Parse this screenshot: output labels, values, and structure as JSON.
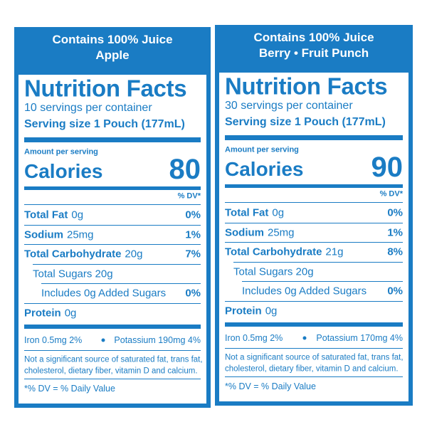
{
  "panels": [
    {
      "header": [
        "Contains 100% Juice",
        "Apple"
      ],
      "title": "Nutrition Facts",
      "servings": "10 servings per container",
      "serving_size": "Serving size 1 Pouch (177mL)",
      "amount_label": "Amount per serving",
      "calories_label": "Calories",
      "calories": 80,
      "dv_header": "% DV*",
      "rows": [
        {
          "name": "Total Fat",
          "amount": "0g",
          "dv": "0%"
        },
        {
          "name": "Sodium",
          "amount": "25mg",
          "dv": "1%"
        },
        {
          "name": "Total Carbohydrate",
          "amount": "20g",
          "dv": "7%"
        },
        {
          "sub": "Total Sugars 20g",
          "level": 1
        },
        {
          "sub": "Includes 0g Added Sugars",
          "level": 2,
          "dv": "0%"
        },
        {
          "name": "Protein",
          "amount": "0g"
        }
      ],
      "minerals": [
        "Iron 0.5mg 2%",
        "Potassium 190mg 4%"
      ],
      "note": [
        "Not a significant source of saturated fat, trans fat,",
        "cholesterol, dietary fiber, vitamin D and calcium."
      ],
      "footnote": "*% DV = % Daily Value"
    },
    {
      "header": [
        "Contains 100% Juice",
        "Berry • Fruit Punch"
      ],
      "title": "Nutrition Facts",
      "servings": "30 servings per container",
      "serving_size": "Serving size 1 Pouch (177mL)",
      "amount_label": "Amount per serving",
      "calories_label": "Calories",
      "calories": 90,
      "dv_header": "% DV*",
      "rows": [
        {
          "name": "Total Fat",
          "amount": "0g",
          "dv": "0%"
        },
        {
          "name": "Sodium",
          "amount": "25mg",
          "dv": "1%"
        },
        {
          "name": "Total Carbohydrate",
          "amount": "21g",
          "dv": "8%"
        },
        {
          "sub": "Total Sugars 20g",
          "level": 1
        },
        {
          "sub": "Includes 0g Added Sugars",
          "level": 2,
          "dv": "0%"
        },
        {
          "name": "Protein",
          "amount": "0g"
        }
      ],
      "minerals": [
        "Iron 0.5mg 2%",
        "Potassium 170mg 4%"
      ],
      "note": [
        "Not a significant source of saturated fat, trans fat,",
        "cholesterol, dietary fiber, vitamin D and calcium."
      ],
      "footnote": "*% DV = % Daily Value"
    }
  ]
}
